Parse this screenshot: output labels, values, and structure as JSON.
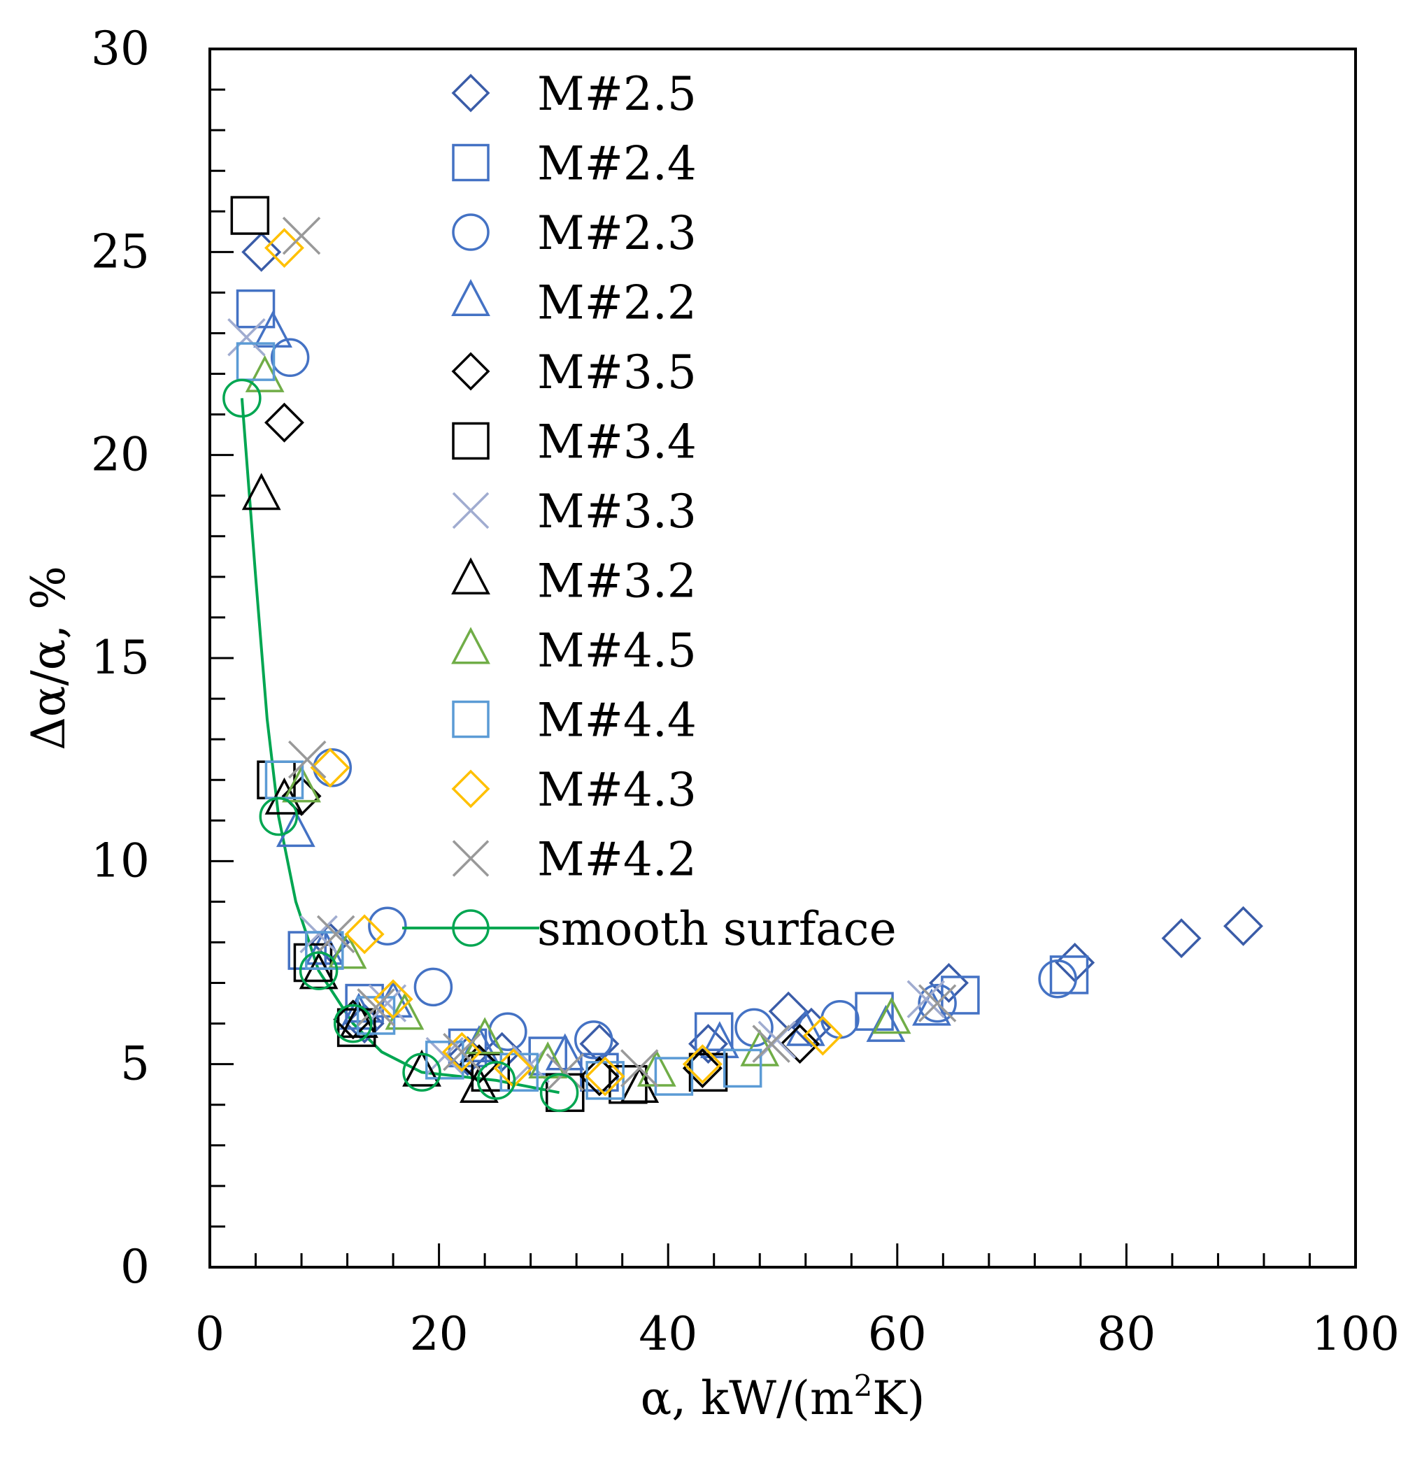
{
  "chart_data": {
    "type": "scatter",
    "title": "",
    "xlabel": "α, kW/(m²K)",
    "xlabel_main": "α, kW/(m",
    "xlabel_sup": "2",
    "xlabel_end": "K)",
    "ylabel": "Δα/α, %",
    "xlim": [
      0,
      100
    ],
    "ylim": [
      0,
      30
    ],
    "xticks": [
      0,
      20,
      40,
      60,
      80,
      100
    ],
    "yticks": [
      0,
      5,
      10,
      15,
      20,
      25,
      30
    ],
    "xtick_labels": [
      "0",
      "20",
      "40",
      "60",
      "80",
      "100"
    ],
    "ytick_labels": [
      "0",
      "5",
      "10",
      "15",
      "20",
      "25",
      "30"
    ],
    "legend_position": "top-center",
    "series": [
      {
        "name": "M#2.5",
        "marker": "diamond",
        "color": "#3a5ca8",
        "points": [
          [
            4.5,
            25.0
          ],
          [
            10.5,
            8.0
          ],
          [
            13.5,
            6.0
          ],
          [
            22.5,
            5.2
          ],
          [
            25.5,
            5.3
          ],
          [
            34.0,
            5.5
          ],
          [
            43.5,
            5.5
          ],
          [
            50.5,
            6.3
          ],
          [
            52.5,
            5.9
          ],
          [
            64.5,
            7.0
          ],
          [
            75.5,
            7.5
          ],
          [
            84.8,
            8.1
          ],
          [
            90.2,
            8.4
          ]
        ]
      },
      {
        "name": "M#2.4",
        "marker": "square",
        "color": "#4472c4",
        "points": [
          [
            4.0,
            23.6
          ],
          [
            8.5,
            7.8
          ],
          [
            13.5,
            6.5
          ],
          [
            22.5,
            5.4
          ],
          [
            29.5,
            5.2
          ],
          [
            34.0,
            4.8
          ],
          [
            44.0,
            5.8
          ],
          [
            58.0,
            6.3
          ],
          [
            65.5,
            6.7
          ],
          [
            75.0,
            7.2
          ]
        ]
      },
      {
        "name": "M#2.3",
        "marker": "circle",
        "color": "#4472c4",
        "points": [
          [
            7.0,
            22.4
          ],
          [
            10.7,
            12.3
          ],
          [
            15.5,
            8.4
          ],
          [
            19.5,
            6.9
          ],
          [
            26.0,
            5.8
          ],
          [
            33.5,
            5.6
          ],
          [
            47.5,
            5.9
          ],
          [
            55.0,
            6.1
          ],
          [
            63.5,
            6.5
          ],
          [
            74.0,
            7.1
          ]
        ]
      },
      {
        "name": "M#2.2",
        "marker": "triangle",
        "color": "#4472c4",
        "points": [
          [
            5.5,
            23.0
          ],
          [
            7.5,
            10.7
          ],
          [
            10.0,
            7.8
          ],
          [
            13.0,
            6.2
          ],
          [
            16.0,
            6.5
          ],
          [
            23.5,
            5.4
          ],
          [
            31.0,
            5.2
          ],
          [
            44.5,
            5.5
          ],
          [
            52.0,
            5.8
          ],
          [
            59.0,
            5.9
          ],
          [
            63.0,
            6.3
          ]
        ]
      },
      {
        "name": "M#3.5",
        "marker": "diamond",
        "color": "#000000",
        "points": [
          [
            6.5,
            20.8
          ],
          [
            8.0,
            11.6
          ],
          [
            12.5,
            6.1
          ],
          [
            23.5,
            5.0
          ],
          [
            34.0,
            4.7
          ],
          [
            43.0,
            4.9
          ],
          [
            51.5,
            5.5
          ]
        ]
      },
      {
        "name": "M#3.4",
        "marker": "square",
        "color": "#000000",
        "points": [
          [
            3.5,
            25.9
          ],
          [
            5.8,
            12.0
          ],
          [
            9.0,
            7.5
          ],
          [
            12.8,
            5.9
          ],
          [
            24.5,
            4.8
          ],
          [
            31.0,
            4.3
          ],
          [
            36.5,
            4.5
          ],
          [
            43.5,
            4.8
          ]
        ]
      },
      {
        "name": "M#3.3",
        "marker": "cross",
        "color": "#a0acd0",
        "points": [
          [
            3.2,
            22.9
          ],
          [
            9.5,
            8.2
          ],
          [
            15.5,
            6.5
          ],
          [
            20.5,
            5.2
          ],
          [
            28.0,
            5.0
          ],
          [
            49.5,
            5.6
          ],
          [
            62.5,
            6.6
          ]
        ]
      },
      {
        "name": "M#3.2",
        "marker": "triangle",
        "color": "#000000",
        "points": [
          [
            4.5,
            19.0
          ],
          [
            6.5,
            11.5
          ],
          [
            9.5,
            7.2
          ],
          [
            13.0,
            6.0
          ],
          [
            18.5,
            4.8
          ],
          [
            23.5,
            4.4
          ],
          [
            37.5,
            4.4
          ]
        ]
      },
      {
        "name": "M#4.5",
        "marker": "triangle",
        "color": "#70ad47",
        "points": [
          [
            4.8,
            21.9
          ],
          [
            8.0,
            11.8
          ],
          [
            12.0,
            7.7
          ],
          [
            17.0,
            6.2
          ],
          [
            24.0,
            5.6
          ],
          [
            29.5,
            5.0
          ],
          [
            39.0,
            4.8
          ],
          [
            48.0,
            5.3
          ],
          [
            59.5,
            6.1
          ]
        ]
      },
      {
        "name": "M#4.4",
        "marker": "square",
        "color": "#5b9bd5",
        "points": [
          [
            4.0,
            22.3
          ],
          [
            6.5,
            12.0
          ],
          [
            10.0,
            7.8
          ],
          [
            14.5,
            6.2
          ],
          [
            20.5,
            5.1
          ],
          [
            27.0,
            4.8
          ],
          [
            34.5,
            4.6
          ],
          [
            40.5,
            4.7
          ],
          [
            46.5,
            4.9
          ]
        ]
      },
      {
        "name": "M#4.3",
        "marker": "diamond",
        "color": "#ffc000",
        "points": [
          [
            6.5,
            25.1
          ],
          [
            10.5,
            12.3
          ],
          [
            13.5,
            8.2
          ],
          [
            16.0,
            6.6
          ],
          [
            22.0,
            5.3
          ],
          [
            26.5,
            4.9
          ],
          [
            34.5,
            4.7
          ],
          [
            43.0,
            5.0
          ],
          [
            53.5,
            5.7
          ]
        ]
      },
      {
        "name": "M#4.2",
        "marker": "cross",
        "color": "#999999",
        "points": [
          [
            8.0,
            25.4
          ],
          [
            8.5,
            12.5
          ],
          [
            11.0,
            8.2
          ],
          [
            14.5,
            6.4
          ],
          [
            22.0,
            5.3
          ],
          [
            31.0,
            4.8
          ],
          [
            37.5,
            4.9
          ],
          [
            49.0,
            5.5
          ],
          [
            63.5,
            6.5
          ]
        ]
      },
      {
        "name": "smooth surface",
        "marker": "circle",
        "color": "#00a651",
        "line": true,
        "points": [
          [
            2.8,
            21.4
          ],
          [
            6.0,
            11.1
          ],
          [
            9.5,
            7.3
          ],
          [
            12.5,
            6.0
          ],
          [
            18.5,
            4.8
          ],
          [
            25.0,
            4.6
          ],
          [
            30.5,
            4.3
          ]
        ],
        "curve": [
          [
            2.8,
            21.4
          ],
          [
            4.0,
            17.0
          ],
          [
            5.0,
            13.5
          ],
          [
            6.0,
            11.1
          ],
          [
            7.5,
            9.0
          ],
          [
            9.5,
            7.3
          ],
          [
            12.5,
            6.0
          ],
          [
            15.0,
            5.3
          ],
          [
            18.5,
            4.8
          ],
          [
            25.0,
            4.6
          ],
          [
            30.5,
            4.3
          ]
        ]
      }
    ]
  }
}
